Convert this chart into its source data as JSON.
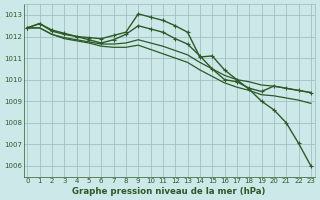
{
  "xlabel": "Graphe pression niveau de la mer (hPa)",
  "bg_color": "#cce8e8",
  "grid_color": "#99bbbb",
  "line_color": "#2d5a27",
  "ylim": [
    1005.5,
    1013.5
  ],
  "xlim": [
    -0.3,
    23.3
  ],
  "yticks": [
    1006,
    1007,
    1008,
    1009,
    1010,
    1011,
    1012,
    1013
  ],
  "xticks": [
    0,
    1,
    2,
    3,
    4,
    5,
    6,
    7,
    8,
    9,
    10,
    11,
    12,
    13,
    14,
    15,
    16,
    17,
    18,
    19,
    20,
    21,
    22,
    23
  ],
  "tick_fontsize": 5.0,
  "label_fontsize": 6.2,
  "series": [
    {
      "x": [
        0,
        1,
        2,
        3,
        4,
        5,
        6,
        7,
        8,
        9,
        10,
        11,
        12,
        13,
        14,
        15,
        16,
        17,
        18,
        19,
        20,
        21,
        22,
        23
      ],
      "y": [
        1012.4,
        1012.6,
        1012.3,
        1012.15,
        1012.0,
        1011.95,
        1011.9,
        1012.05,
        1012.2,
        1013.05,
        1012.9,
        1012.75,
        1012.5,
        1012.2,
        1011.05,
        1011.1,
        1010.45,
        1010.0,
        1009.55,
        1009.0,
        1008.6,
        1008.0,
        1007.05,
        1006.0
      ],
      "marker": true,
      "lw": 1.0
    },
    {
      "x": [
        0,
        1,
        2,
        3,
        4,
        5,
        6,
        7,
        8,
        9,
        10,
        11,
        12,
        13,
        14,
        15,
        16,
        17,
        18,
        19,
        20,
        21,
        22,
        23
      ],
      "y": [
        1012.4,
        1012.6,
        1012.25,
        1012.1,
        1012.0,
        1011.85,
        1011.7,
        1011.85,
        1012.1,
        1012.5,
        1012.35,
        1012.2,
        1011.9,
        1011.65,
        1011.1,
        1010.5,
        1010.0,
        1009.9,
        1009.6,
        1009.45,
        1009.7,
        1009.6,
        1009.5,
        1009.4
      ],
      "marker": true,
      "lw": 1.0
    },
    {
      "x": [
        0,
        1,
        2,
        3,
        4,
        5,
        6,
        7,
        8,
        9,
        10,
        11,
        12,
        13,
        14,
        15,
        16,
        17,
        18,
        19,
        20,
        21,
        22,
        23
      ],
      "y": [
        1012.4,
        1012.4,
        1012.1,
        1011.95,
        1011.85,
        1011.75,
        1011.65,
        1011.65,
        1011.7,
        1011.85,
        1011.7,
        1011.55,
        1011.35,
        1011.15,
        1010.8,
        1010.5,
        1010.2,
        1010.0,
        1009.9,
        1009.75,
        1009.7,
        1009.6,
        1009.5,
        1009.4
      ],
      "marker": false,
      "lw": 0.9
    },
    {
      "x": [
        0,
        1,
        2,
        3,
        4,
        5,
        6,
        7,
        8,
        9,
        10,
        11,
        12,
        13,
        14,
        15,
        16,
        17,
        18,
        19,
        20,
        21,
        22,
        23
      ],
      "y": [
        1012.4,
        1012.4,
        1012.1,
        1011.9,
        1011.8,
        1011.7,
        1011.55,
        1011.5,
        1011.5,
        1011.6,
        1011.4,
        1011.2,
        1011.0,
        1010.8,
        1010.45,
        1010.15,
        1009.85,
        1009.65,
        1009.5,
        1009.3,
        1009.25,
        1009.15,
        1009.05,
        1008.9
      ],
      "marker": false,
      "lw": 0.9
    }
  ]
}
